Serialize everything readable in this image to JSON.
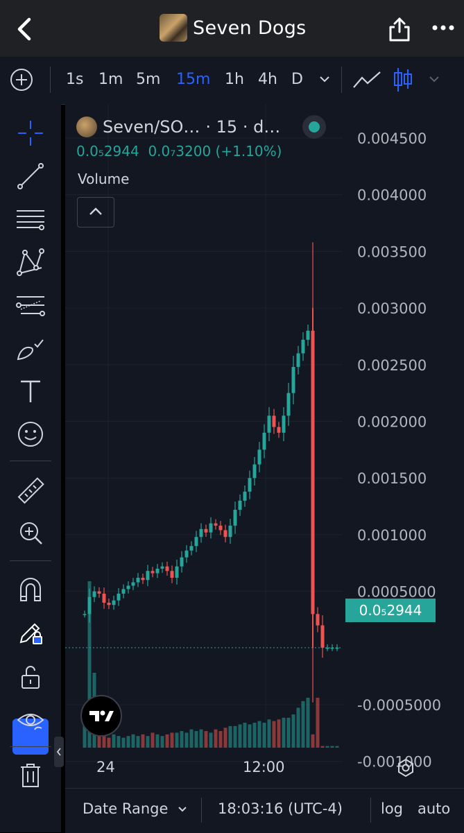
{
  "header": {
    "title": "Seven Dogs",
    "icons": [
      "back-chevron-icon",
      "share-icon",
      "more-icon"
    ]
  },
  "toolbar": {
    "timeframes": [
      "1s",
      "1m",
      "5m",
      "15m",
      "1h",
      "4h",
      "D"
    ],
    "active_timeframe": "15m",
    "accent": "#2962ff"
  },
  "left_tools": [
    "crosshair-icon",
    "trend-line-icon",
    "horizontal-lines-icon",
    "pattern-icon",
    "fib-icon",
    "brush-icon",
    "text-icon",
    "emoji-icon",
    "ruler-icon",
    "zoom-in-icon",
    "magnet-icon",
    "lock-drawings-icon",
    "unlock-icon",
    "eye-icon",
    "trash-icon"
  ],
  "legend": {
    "symbol": "Seven/SO…",
    "interval": "· 15 · d…",
    "last": "0.0₅2944",
    "change": "0.0₇3200 (+1.10%)",
    "volume_label": "Volume"
  },
  "price_tag": "0.0₅2944",
  "time_labels": [
    "24",
    "12:00"
  ],
  "bottom": {
    "date_range": "Date Range",
    "clock": "18:03:16 (UTC-4)",
    "log": "log",
    "auto": "auto"
  },
  "colors": {
    "up": "#26a69a",
    "down": "#ef5350",
    "background": "#131722"
  },
  "chart_data": {
    "type": "candlestick",
    "yticks": [
      0.0045,
      0.004,
      0.0035,
      0.003,
      0.0025,
      0.002,
      0.0015,
      0.001,
      0.0005,
      -0.0005,
      -0.001
    ],
    "ytick_labels": [
      "0.004500",
      "0.004000",
      "0.003500",
      "0.003000",
      "0.002500",
      "0.002000",
      "0.001500",
      "0.001000",
      "0.0005000",
      "-0.0005000",
      "-0.001000"
    ],
    "ylim": [
      -0.00132,
      0.0048
    ],
    "last_price": 2.9e-06,
    "close_series": [
      0.0003,
      0.00045,
      0.0005,
      0.00048,
      0.0004,
      0.00038,
      0.00042,
      0.00048,
      0.00052,
      0.00055,
      0.00058,
      0.00062,
      0.0006,
      0.00068,
      0.00066,
      0.0007,
      0.00072,
      0.00068,
      0.00062,
      0.00072,
      0.0008,
      0.00086,
      0.0009,
      0.00098,
      0.00105,
      0.00102,
      0.0011,
      0.00108,
      0.00104,
      0.00098,
      0.00108,
      0.00122,
      0.0013,
      0.00138,
      0.0015,
      0.00162,
      0.00175,
      0.0019,
      0.00205,
      0.00195,
      0.0019,
      0.00205,
      0.00225,
      0.00248,
      0.0026,
      0.00272,
      0.0028,
      0.0003,
      0.0002,
      2.9e-06,
      2.9e-06,
      2.9e-06,
      2.9e-06
    ],
    "volume_series": [
      25,
      100,
      45,
      8,
      7,
      6,
      8,
      7,
      6,
      7,
      8,
      7,
      8,
      7,
      9,
      8,
      7,
      8,
      9,
      9,
      10,
      9,
      11,
      10,
      11,
      10,
      9,
      11,
      10,
      12,
      13,
      13,
      14,
      15,
      14,
      15,
      16,
      15,
      17,
      16,
      17,
      18,
      18,
      20,
      24,
      28,
      30,
      8,
      30,
      1,
      1,
      1,
      1
    ]
  }
}
